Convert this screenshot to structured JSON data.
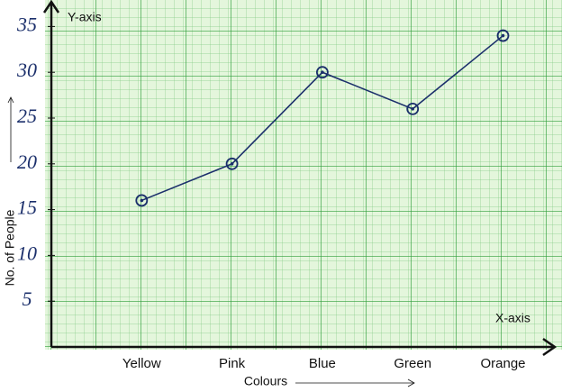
{
  "chart_data": {
    "type": "line",
    "x_axis_label": "Colours",
    "y_axis_label": "No. of People",
    "x_axis_name": "X-axis",
    "y_axis_name": "Y-axis",
    "categories": [
      "Yellow",
      "Pink",
      "Blue",
      "Green",
      "Orange"
    ],
    "series": [
      {
        "name": "No. of People",
        "color": "#1b2f6b",
        "values": [
          16,
          20,
          30,
          26,
          34
        ]
      }
    ],
    "ylim": [
      0,
      37.5
    ],
    "yticks": [
      5,
      10,
      15,
      20,
      25,
      30,
      35
    ]
  }
}
